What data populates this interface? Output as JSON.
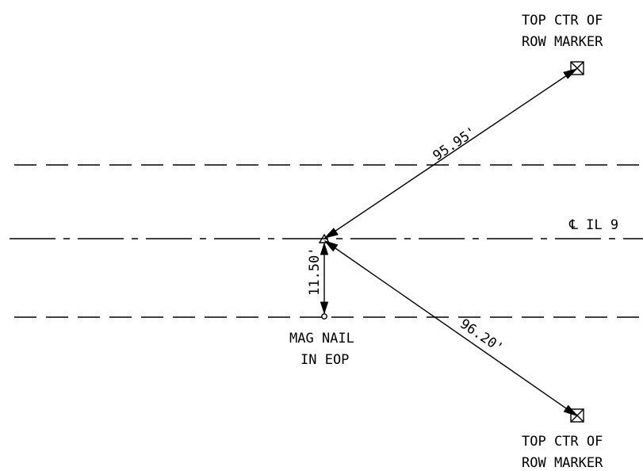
{
  "labels": {
    "marker_top_line1": "TOP CTR OF",
    "marker_top_line2": "ROW MARKER",
    "marker_bottom_line1": "TOP CTR OF",
    "marker_bottom_line2": "ROW MARKER",
    "mag_nail_line1": "MAG NAIL",
    "mag_nail_line2": "IN EOP",
    "centerline": "℄ IL 9"
  },
  "dimensions": {
    "to_top_marker": "95.95'",
    "to_bottom_marker": "96.20'",
    "to_mag_nail": "11.50'"
  },
  "colors": {
    "ink": "#000000",
    "background": "#ffffff"
  }
}
